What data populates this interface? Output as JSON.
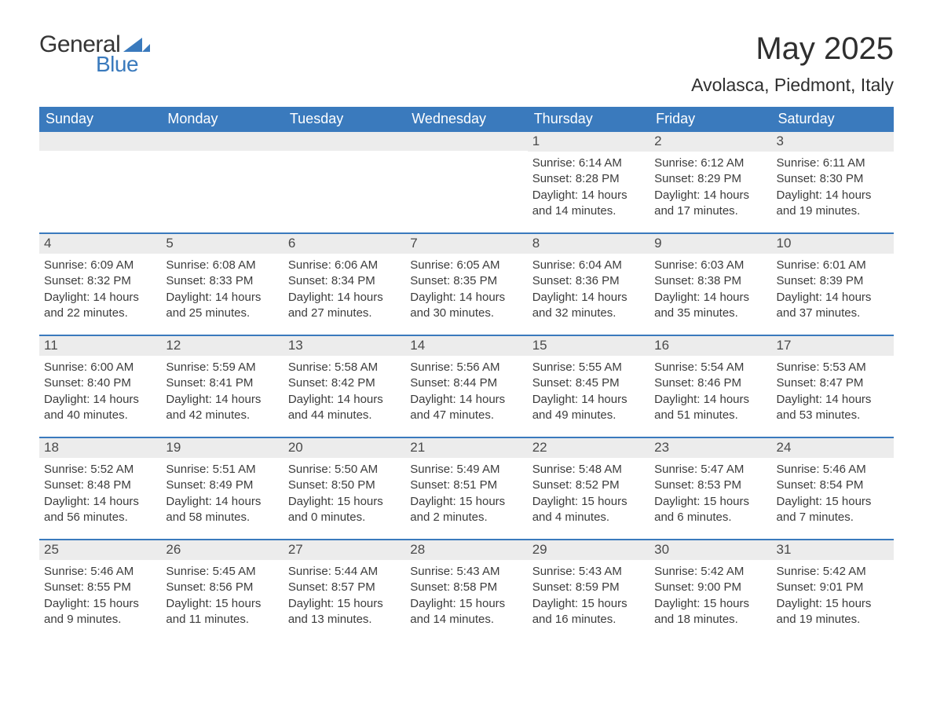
{
  "brand": {
    "part1": "General",
    "part2": "Blue",
    "tri_color": "#3a7abd"
  },
  "title": "May 2025",
  "subtitle": "Avolasca, Piedmont, Italy",
  "colors": {
    "header_bg": "#3a7abd",
    "header_text": "#ffffff",
    "daynum_bg": "#ececec",
    "body_text": "#3c3c3c",
    "rule": "#3a7abd",
    "page_bg": "#ffffff"
  },
  "typography": {
    "title_fontsize": 40,
    "subtitle_fontsize": 23,
    "header_fontsize": 18,
    "daynum_fontsize": 17,
    "body_fontsize": 15
  },
  "day_headers": [
    "Sunday",
    "Monday",
    "Tuesday",
    "Wednesday",
    "Thursday",
    "Friday",
    "Saturday"
  ],
  "weeks": [
    [
      {
        "n": "",
        "lines": []
      },
      {
        "n": "",
        "lines": []
      },
      {
        "n": "",
        "lines": []
      },
      {
        "n": "",
        "lines": []
      },
      {
        "n": "1",
        "lines": [
          "Sunrise: 6:14 AM",
          "Sunset: 8:28 PM",
          "Daylight: 14 hours",
          "and 14 minutes."
        ]
      },
      {
        "n": "2",
        "lines": [
          "Sunrise: 6:12 AM",
          "Sunset: 8:29 PM",
          "Daylight: 14 hours",
          "and 17 minutes."
        ]
      },
      {
        "n": "3",
        "lines": [
          "Sunrise: 6:11 AM",
          "Sunset: 8:30 PM",
          "Daylight: 14 hours",
          "and 19 minutes."
        ]
      }
    ],
    [
      {
        "n": "4",
        "lines": [
          "Sunrise: 6:09 AM",
          "Sunset: 8:32 PM",
          "Daylight: 14 hours",
          "and 22 minutes."
        ]
      },
      {
        "n": "5",
        "lines": [
          "Sunrise: 6:08 AM",
          "Sunset: 8:33 PM",
          "Daylight: 14 hours",
          "and 25 minutes."
        ]
      },
      {
        "n": "6",
        "lines": [
          "Sunrise: 6:06 AM",
          "Sunset: 8:34 PM",
          "Daylight: 14 hours",
          "and 27 minutes."
        ]
      },
      {
        "n": "7",
        "lines": [
          "Sunrise: 6:05 AM",
          "Sunset: 8:35 PM",
          "Daylight: 14 hours",
          "and 30 minutes."
        ]
      },
      {
        "n": "8",
        "lines": [
          "Sunrise: 6:04 AM",
          "Sunset: 8:36 PM",
          "Daylight: 14 hours",
          "and 32 minutes."
        ]
      },
      {
        "n": "9",
        "lines": [
          "Sunrise: 6:03 AM",
          "Sunset: 8:38 PM",
          "Daylight: 14 hours",
          "and 35 minutes."
        ]
      },
      {
        "n": "10",
        "lines": [
          "Sunrise: 6:01 AM",
          "Sunset: 8:39 PM",
          "Daylight: 14 hours",
          "and 37 minutes."
        ]
      }
    ],
    [
      {
        "n": "11",
        "lines": [
          "Sunrise: 6:00 AM",
          "Sunset: 8:40 PM",
          "Daylight: 14 hours",
          "and 40 minutes."
        ]
      },
      {
        "n": "12",
        "lines": [
          "Sunrise: 5:59 AM",
          "Sunset: 8:41 PM",
          "Daylight: 14 hours",
          "and 42 minutes."
        ]
      },
      {
        "n": "13",
        "lines": [
          "Sunrise: 5:58 AM",
          "Sunset: 8:42 PM",
          "Daylight: 14 hours",
          "and 44 minutes."
        ]
      },
      {
        "n": "14",
        "lines": [
          "Sunrise: 5:56 AM",
          "Sunset: 8:44 PM",
          "Daylight: 14 hours",
          "and 47 minutes."
        ]
      },
      {
        "n": "15",
        "lines": [
          "Sunrise: 5:55 AM",
          "Sunset: 8:45 PM",
          "Daylight: 14 hours",
          "and 49 minutes."
        ]
      },
      {
        "n": "16",
        "lines": [
          "Sunrise: 5:54 AM",
          "Sunset: 8:46 PM",
          "Daylight: 14 hours",
          "and 51 minutes."
        ]
      },
      {
        "n": "17",
        "lines": [
          "Sunrise: 5:53 AM",
          "Sunset: 8:47 PM",
          "Daylight: 14 hours",
          "and 53 minutes."
        ]
      }
    ],
    [
      {
        "n": "18",
        "lines": [
          "Sunrise: 5:52 AM",
          "Sunset: 8:48 PM",
          "Daylight: 14 hours",
          "and 56 minutes."
        ]
      },
      {
        "n": "19",
        "lines": [
          "Sunrise: 5:51 AM",
          "Sunset: 8:49 PM",
          "Daylight: 14 hours",
          "and 58 minutes."
        ]
      },
      {
        "n": "20",
        "lines": [
          "Sunrise: 5:50 AM",
          "Sunset: 8:50 PM",
          "Daylight: 15 hours",
          "and 0 minutes."
        ]
      },
      {
        "n": "21",
        "lines": [
          "Sunrise: 5:49 AM",
          "Sunset: 8:51 PM",
          "Daylight: 15 hours",
          "and 2 minutes."
        ]
      },
      {
        "n": "22",
        "lines": [
          "Sunrise: 5:48 AM",
          "Sunset: 8:52 PM",
          "Daylight: 15 hours",
          "and 4 minutes."
        ]
      },
      {
        "n": "23",
        "lines": [
          "Sunrise: 5:47 AM",
          "Sunset: 8:53 PM",
          "Daylight: 15 hours",
          "and 6 minutes."
        ]
      },
      {
        "n": "24",
        "lines": [
          "Sunrise: 5:46 AM",
          "Sunset: 8:54 PM",
          "Daylight: 15 hours",
          "and 7 minutes."
        ]
      }
    ],
    [
      {
        "n": "25",
        "lines": [
          "Sunrise: 5:46 AM",
          "Sunset: 8:55 PM",
          "Daylight: 15 hours",
          "and 9 minutes."
        ]
      },
      {
        "n": "26",
        "lines": [
          "Sunrise: 5:45 AM",
          "Sunset: 8:56 PM",
          "Daylight: 15 hours",
          "and 11 minutes."
        ]
      },
      {
        "n": "27",
        "lines": [
          "Sunrise: 5:44 AM",
          "Sunset: 8:57 PM",
          "Daylight: 15 hours",
          "and 13 minutes."
        ]
      },
      {
        "n": "28",
        "lines": [
          "Sunrise: 5:43 AM",
          "Sunset: 8:58 PM",
          "Daylight: 15 hours",
          "and 14 minutes."
        ]
      },
      {
        "n": "29",
        "lines": [
          "Sunrise: 5:43 AM",
          "Sunset: 8:59 PM",
          "Daylight: 15 hours",
          "and 16 minutes."
        ]
      },
      {
        "n": "30",
        "lines": [
          "Sunrise: 5:42 AM",
          "Sunset: 9:00 PM",
          "Daylight: 15 hours",
          "and 18 minutes."
        ]
      },
      {
        "n": "31",
        "lines": [
          "Sunrise: 5:42 AM",
          "Sunset: 9:01 PM",
          "Daylight: 15 hours",
          "and 19 minutes."
        ]
      }
    ]
  ]
}
